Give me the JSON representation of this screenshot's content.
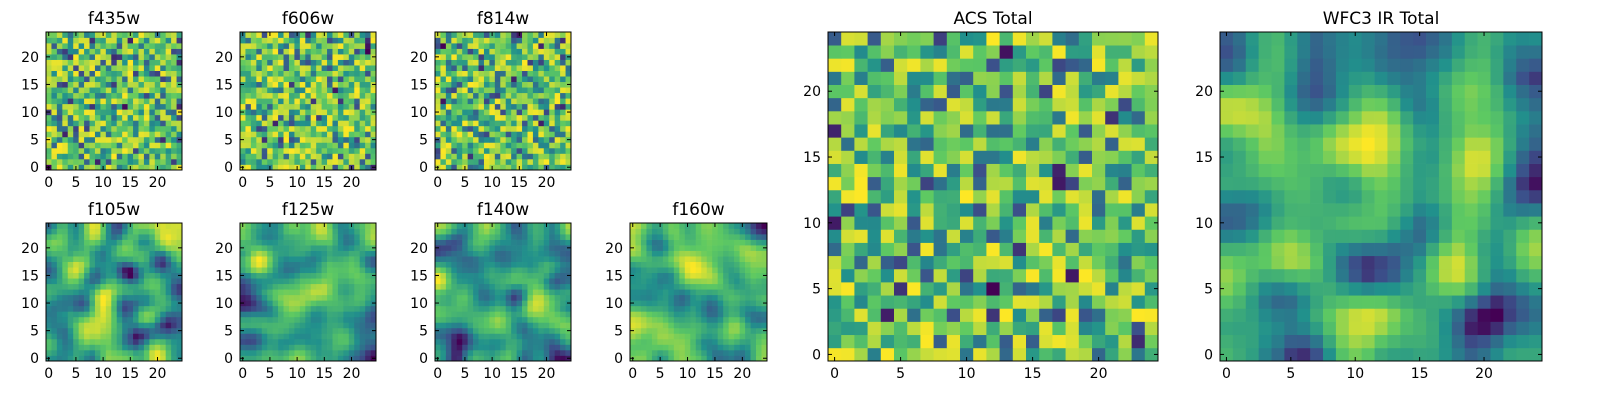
{
  "chart_data": [
    {
      "type": "heatmap",
      "title": "f435w",
      "xlim": [
        0,
        24
      ],
      "ylim": [
        0,
        24
      ],
      "xticks": [
        "0",
        "5",
        "10",
        "15",
        "20"
      ],
      "yticks": [
        "0",
        "5",
        "10",
        "15",
        "20"
      ],
      "colormap": "viridis",
      "texture": "pixel noise",
      "seed": 11
    },
    {
      "type": "heatmap",
      "title": "f606w",
      "xlim": [
        0,
        24
      ],
      "ylim": [
        0,
        24
      ],
      "xticks": [
        "0",
        "5",
        "10",
        "15",
        "20"
      ],
      "yticks": [
        "0",
        "5",
        "10",
        "15",
        "20"
      ],
      "colormap": "viridis",
      "texture": "pixel noise",
      "seed": 23
    },
    {
      "type": "heatmap",
      "title": "f814w",
      "xlim": [
        0,
        24
      ],
      "ylim": [
        0,
        24
      ],
      "xticks": [
        "0",
        "5",
        "10",
        "15",
        "20"
      ],
      "yticks": [
        "0",
        "5",
        "10",
        "15",
        "20"
      ],
      "colormap": "viridis",
      "texture": "pixel noise",
      "seed": 37
    },
    {
      "type": "heatmap",
      "title": "f105w",
      "xlim": [
        0,
        24
      ],
      "ylim": [
        0,
        24
      ],
      "xticks": [
        "0",
        "5",
        "10",
        "15",
        "20"
      ],
      "yticks": [
        "0",
        "5",
        "10",
        "15",
        "20"
      ],
      "colormap": "viridis",
      "texture": "smooth",
      "seed": 41
    },
    {
      "type": "heatmap",
      "title": "f125w",
      "xlim": [
        0,
        24
      ],
      "ylim": [
        0,
        24
      ],
      "xticks": [
        "0",
        "5",
        "10",
        "15",
        "20"
      ],
      "yticks": [
        "0",
        "5",
        "10",
        "15",
        "20"
      ],
      "colormap": "viridis",
      "texture": "smooth",
      "seed": 53
    },
    {
      "type": "heatmap",
      "title": "f140w",
      "xlim": [
        0,
        24
      ],
      "ylim": [
        0,
        24
      ],
      "xticks": [
        "0",
        "5",
        "10",
        "15",
        "20"
      ],
      "yticks": [
        "0",
        "5",
        "10",
        "15",
        "20"
      ],
      "colormap": "viridis",
      "texture": "smooth",
      "seed": 67
    },
    {
      "type": "heatmap",
      "title": "f160w",
      "xlim": [
        0,
        24
      ],
      "ylim": [
        0,
        24
      ],
      "xticks": [
        "0",
        "5",
        "10",
        "15",
        "20"
      ],
      "yticks": [
        "0",
        "5",
        "10",
        "15",
        "20"
      ],
      "colormap": "viridis",
      "texture": "smooth",
      "seed": 79
    },
    {
      "type": "heatmap",
      "title": "ACS Total",
      "xlim": [
        0,
        24
      ],
      "ylim": [
        0,
        24
      ],
      "xticks": [
        "0",
        "5",
        "10",
        "15",
        "20"
      ],
      "yticks": [
        "0",
        "5",
        "10",
        "15",
        "20"
      ],
      "colormap": "viridis",
      "texture": "pixel noise",
      "seed": 83
    },
    {
      "type": "heatmap",
      "title": "WFC3 IR Total",
      "xlim": [
        0,
        24
      ],
      "ylim": [
        0,
        24
      ],
      "xticks": [
        "0",
        "5",
        "10",
        "15",
        "20"
      ],
      "yticks": [
        "0",
        "5",
        "10",
        "15",
        "20"
      ],
      "colormap": "viridis",
      "texture": "smooth",
      "seed": 97
    }
  ]
}
